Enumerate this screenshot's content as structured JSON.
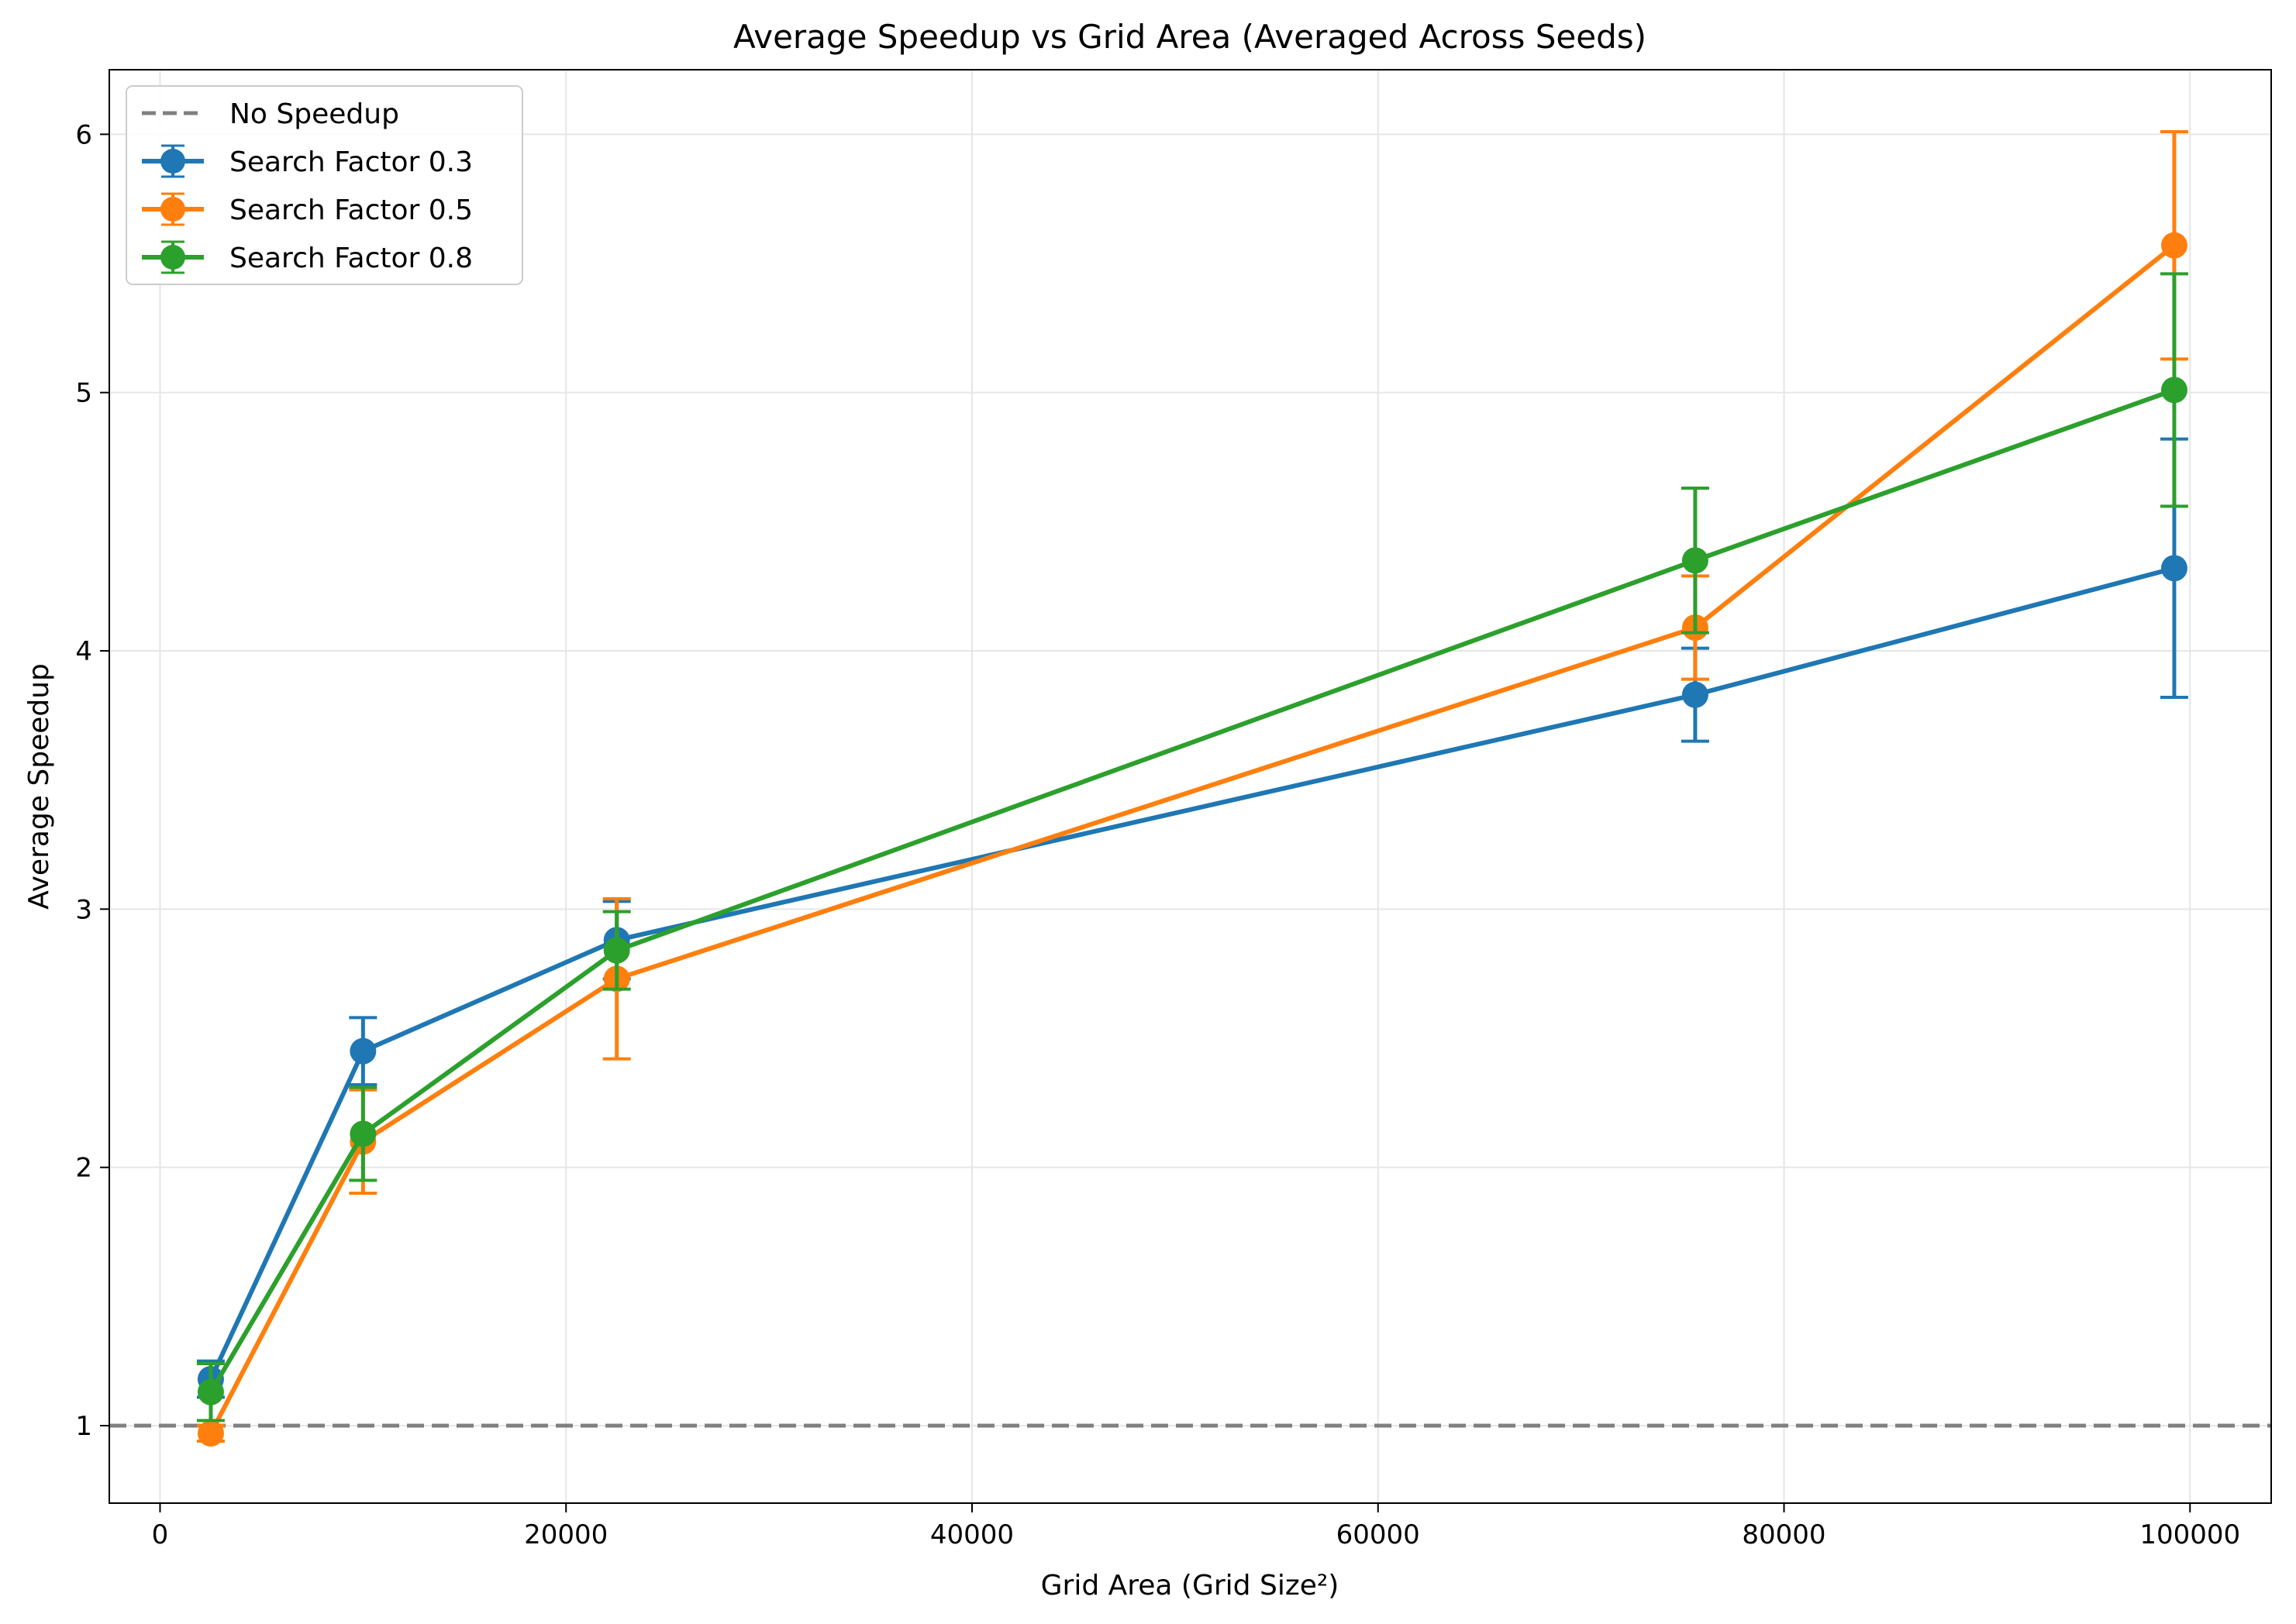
{
  "chart_data": {
    "type": "line",
    "title": "Average Speedup vs Grid Area (Averaged Across Seeds)",
    "xlabel": "Grid Area (Grid Size²)",
    "ylabel": "Average Speedup",
    "xlim": [
      -2500,
      104000
    ],
    "ylim": [
      0.7,
      6.25
    ],
    "xticks": [
      0,
      20000,
      40000,
      60000,
      80000,
      100000
    ],
    "yticks": [
      1,
      2,
      3,
      4,
      5,
      6
    ],
    "grid": true,
    "legend_position": "upper-left",
    "reference_line": {
      "name": "No Speedup",
      "y": 1,
      "color": "#808080",
      "style": "dashed"
    },
    "x": [
      2500,
      10000,
      22500,
      75625,
      99225
    ],
    "series": [
      {
        "name": "Search Factor 0.3",
        "color": "#1f77b4",
        "values": [
          1.18,
          2.45,
          2.88,
          3.83,
          4.32
        ],
        "errors": [
          0.07,
          0.13,
          0.15,
          0.18,
          0.5
        ]
      },
      {
        "name": "Search Factor 0.5",
        "color": "#ff7f0e",
        "values": [
          0.97,
          2.1,
          2.73,
          4.09,
          5.57
        ],
        "errors": [
          0.03,
          0.2,
          0.31,
          0.2,
          0.44
        ]
      },
      {
        "name": "Search Factor 0.8",
        "color": "#2ca02c",
        "values": [
          1.13,
          2.13,
          2.84,
          4.35,
          5.01
        ],
        "errors": [
          0.11,
          0.18,
          0.15,
          0.28,
          0.45
        ]
      }
    ]
  }
}
